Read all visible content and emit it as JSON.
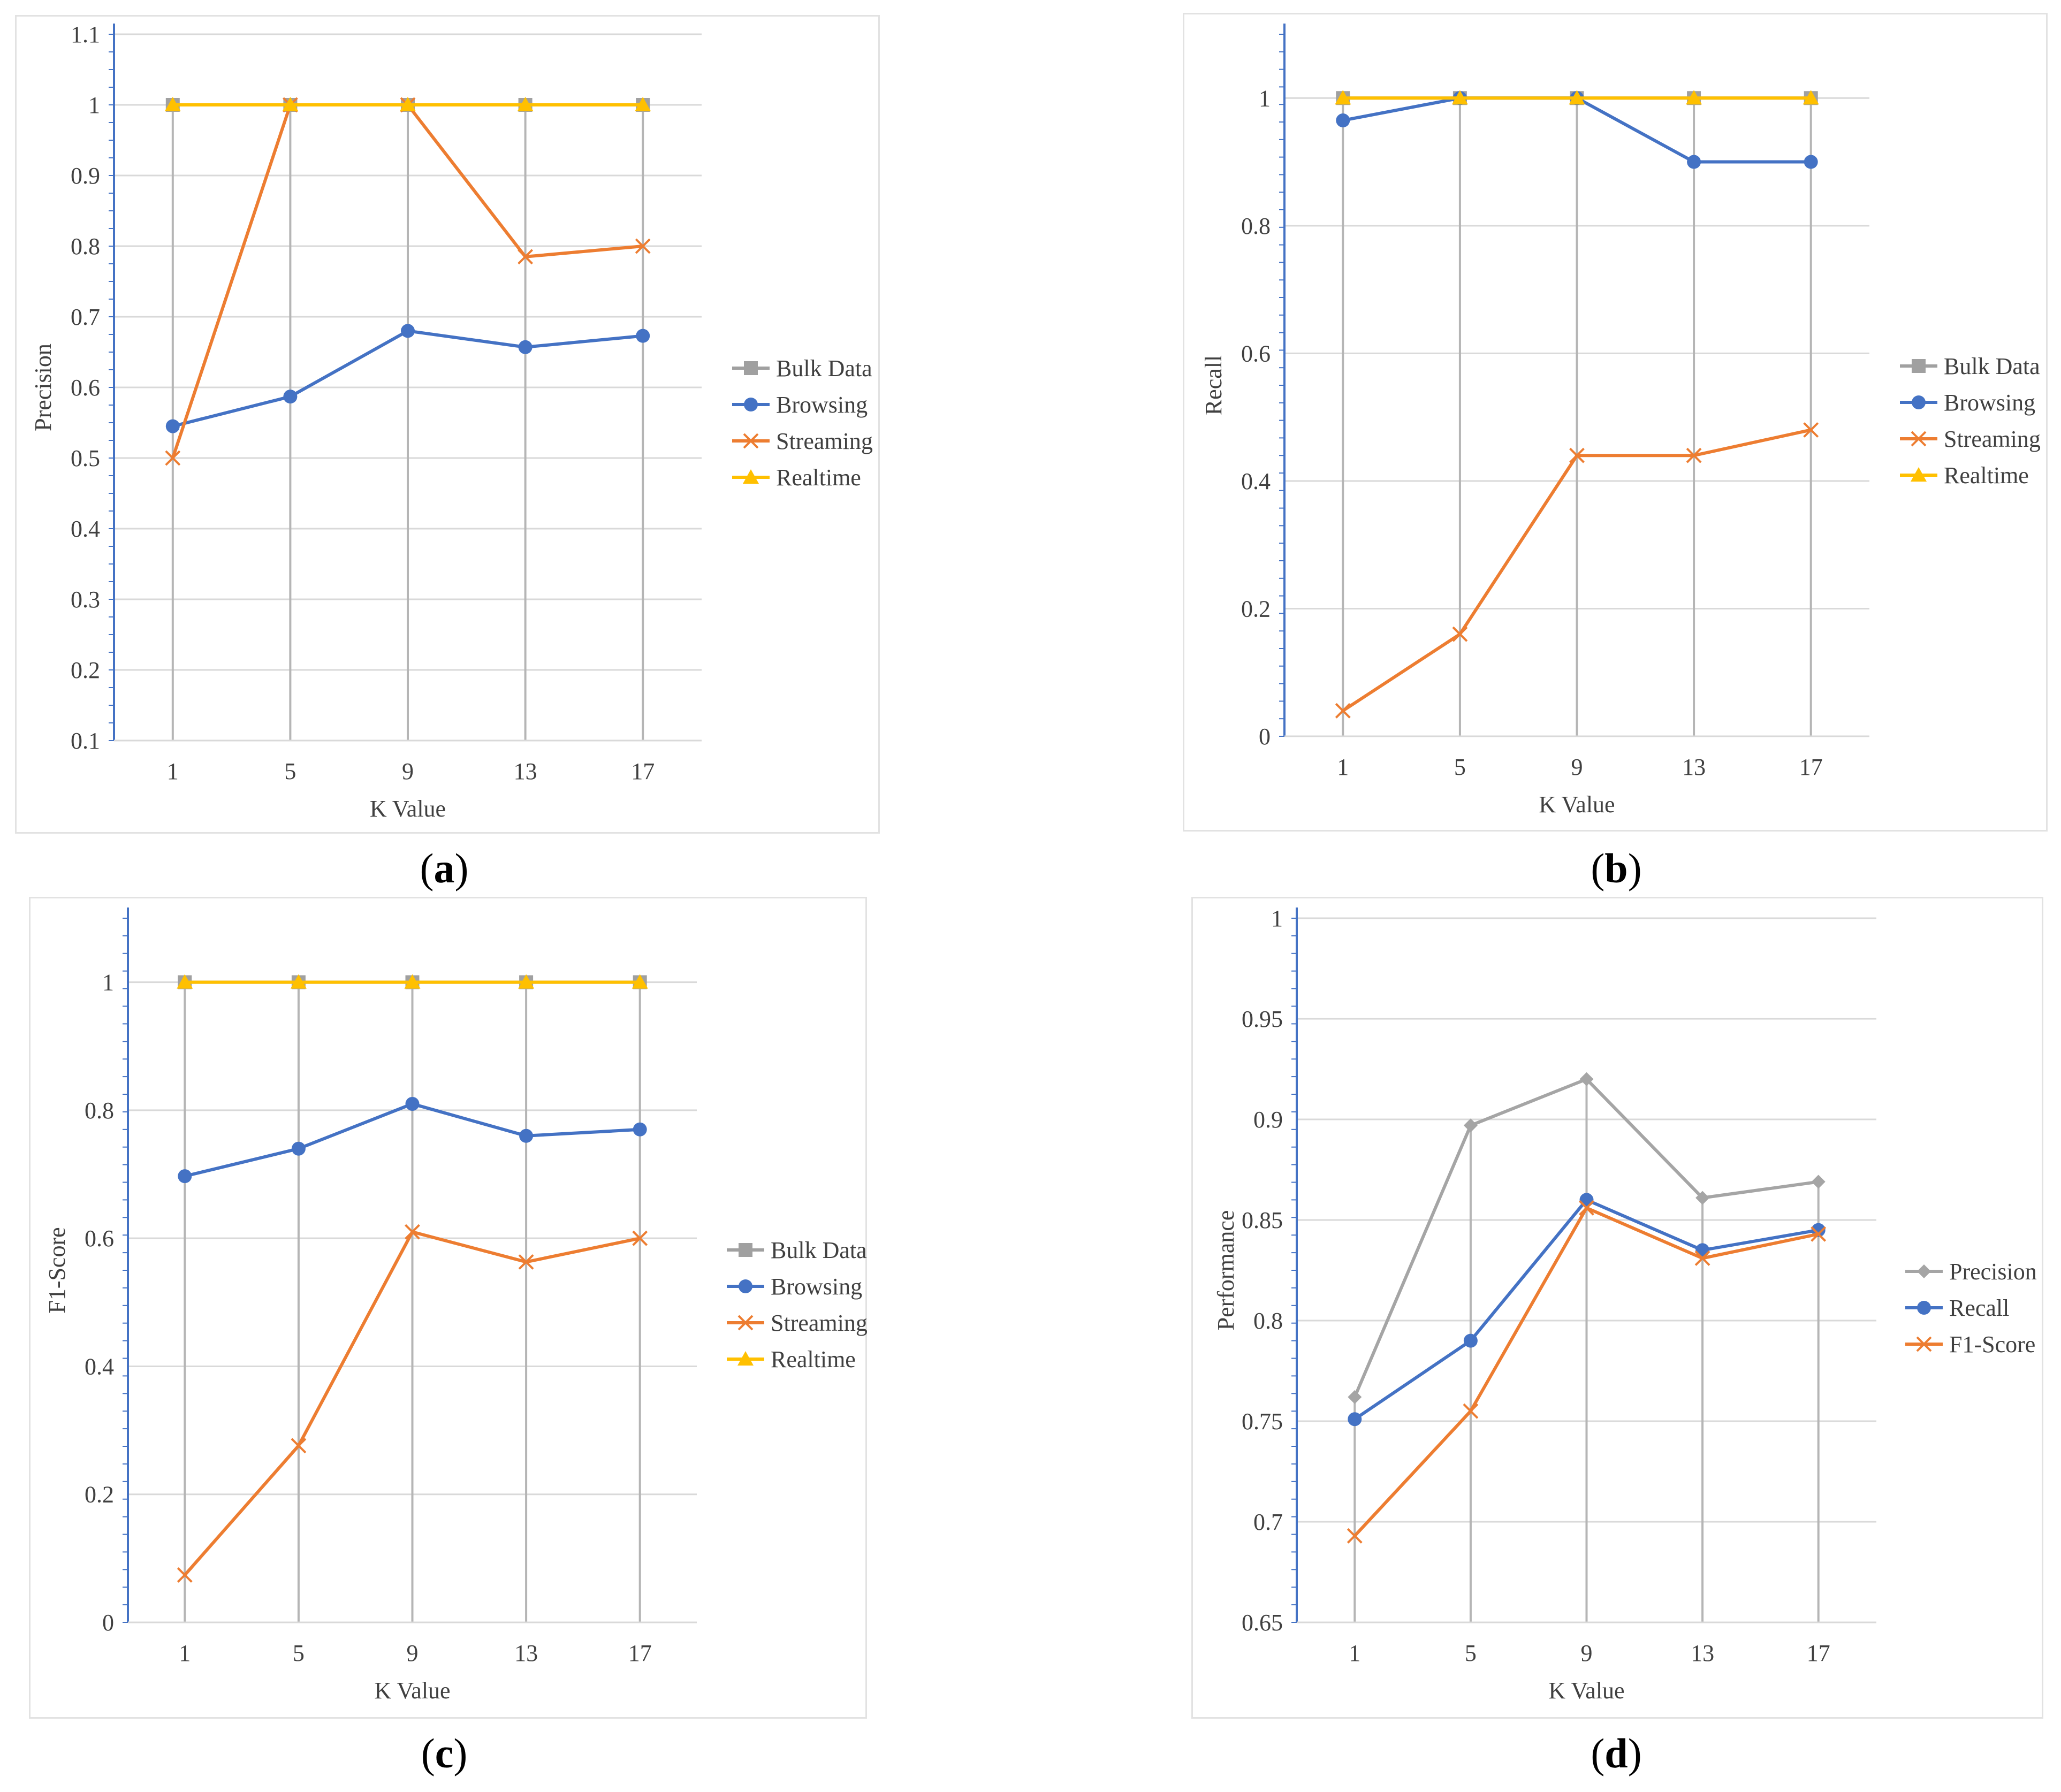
{
  "panel_labels": [
    "a",
    "b",
    "c",
    "d"
  ],
  "colors": {
    "bulk": "#a0a0a0",
    "browsing": "#4472c4",
    "streaming": "#ed7d31",
    "realtime": "#ffc000",
    "precision": "#a5a5a5",
    "grid": "#d9d9d9",
    "axis_blue": "#4472c4"
  },
  "chart_data": [
    {
      "type": "line",
      "title": "",
      "categories": [
        "1",
        "5",
        "9",
        "13",
        "17"
      ],
      "xlabel": "K Value",
      "ylabel": "Precision",
      "ylim": [
        0.1,
        1.1
      ],
      "yticks": [
        "0.1",
        "0.2",
        "0.3",
        "0.4",
        "0.5",
        "0.6",
        "0.7",
        "0.8",
        "0.9",
        "1",
        "1.1"
      ],
      "ytick_values": [
        0.1,
        0.2,
        0.3,
        0.4,
        0.5,
        0.6,
        0.7,
        0.8,
        0.9,
        1.0,
        1.1
      ],
      "grid": true,
      "legend_position": "right",
      "series": [
        {
          "name": "Bulk Data",
          "values": [
            1,
            1,
            1,
            1,
            1
          ],
          "color": "#a0a0a0",
          "marker": "square"
        },
        {
          "name": "Browsing",
          "values": [
            0.545,
            0.587,
            0.68,
            0.657,
            0.673
          ],
          "color": "#4472c4",
          "marker": "circle"
        },
        {
          "name": "Streaming",
          "values": [
            0.5,
            1,
            1,
            0.785,
            0.8
          ],
          "color": "#ed7d31",
          "marker": "x"
        },
        {
          "name": "Realtime",
          "values": [
            1,
            1,
            1,
            1,
            1
          ],
          "color": "#ffc000",
          "marker": "triangle"
        }
      ]
    },
    {
      "type": "line",
      "title": "",
      "categories": [
        "1",
        "5",
        "9",
        "13",
        "17"
      ],
      "xlabel": "K Value",
      "ylabel": "Recall",
      "ylim": [
        0,
        1.1
      ],
      "yticks": [
        "0",
        "0.2",
        "0.4",
        "0.6",
        "0.8",
        "1"
      ],
      "ytick_values": [
        0,
        0.2,
        0.4,
        0.6,
        0.8,
        1.0
      ],
      "grid": true,
      "legend_position": "right",
      "series": [
        {
          "name": "Bulk Data",
          "values": [
            1,
            1,
            1,
            1,
            1
          ],
          "color": "#a0a0a0",
          "marker": "square"
        },
        {
          "name": "Browsing",
          "values": [
            0.965,
            1,
            1,
            0.9,
            0.9
          ],
          "color": "#4472c4",
          "marker": "circle"
        },
        {
          "name": "Streaming",
          "values": [
            0.04,
            0.16,
            0.44,
            0.44,
            0.48
          ],
          "color": "#ed7d31",
          "marker": "x"
        },
        {
          "name": "Realtime",
          "values": [
            1,
            1,
            1,
            1,
            1
          ],
          "color": "#ffc000",
          "marker": "triangle"
        }
      ]
    },
    {
      "type": "line",
      "title": "",
      "categories": [
        "1",
        "5",
        "9",
        "13",
        "17"
      ],
      "xlabel": "K Value",
      "ylabel": "F1-Score",
      "ylim": [
        0,
        1.1
      ],
      "yticks": [
        "0",
        "0.2",
        "0.4",
        "0.6",
        "0.8",
        "1"
      ],
      "ytick_values": [
        0,
        0.2,
        0.4,
        0.6,
        0.8,
        1.0
      ],
      "grid": true,
      "legend_position": "right",
      "series": [
        {
          "name": "Bulk Data",
          "values": [
            1,
            1,
            1,
            1,
            1
          ],
          "color": "#a0a0a0",
          "marker": "square"
        },
        {
          "name": "Browsing",
          "values": [
            0.697,
            0.74,
            0.81,
            0.76,
            0.77
          ],
          "color": "#4472c4",
          "marker": "circle"
        },
        {
          "name": "Streaming",
          "values": [
            0.074,
            0.276,
            0.61,
            0.563,
            0.6
          ],
          "color": "#ed7d31",
          "marker": "x"
        },
        {
          "name": "Realtime",
          "values": [
            1,
            1,
            1,
            1,
            1
          ],
          "color": "#ffc000",
          "marker": "triangle"
        }
      ]
    },
    {
      "type": "line",
      "title": "",
      "categories": [
        "1",
        "5",
        "9",
        "13",
        "17"
      ],
      "xlabel": "K Value",
      "ylabel": "Performance",
      "ylim": [
        0.65,
        1.0
      ],
      "yticks": [
        "0.65",
        "0.7",
        "0.75",
        "0.8",
        "0.85",
        "0.9",
        "0.95",
        "1"
      ],
      "ytick_values": [
        0.65,
        0.7,
        0.75,
        0.8,
        0.85,
        0.9,
        0.95,
        1.0
      ],
      "grid": true,
      "legend_position": "right",
      "series": [
        {
          "name": "Precision",
          "values": [
            0.762,
            0.897,
            0.92,
            0.861,
            0.869
          ],
          "color": "#a5a5a5",
          "marker": "diamond"
        },
        {
          "name": "Recall",
          "values": [
            0.751,
            0.79,
            0.86,
            0.835,
            0.845
          ],
          "color": "#4472c4",
          "marker": "circle"
        },
        {
          "name": "F1-Score",
          "values": [
            0.693,
            0.755,
            0.856,
            0.831,
            0.843
          ],
          "color": "#ed7d31",
          "marker": "x"
        }
      ]
    }
  ]
}
